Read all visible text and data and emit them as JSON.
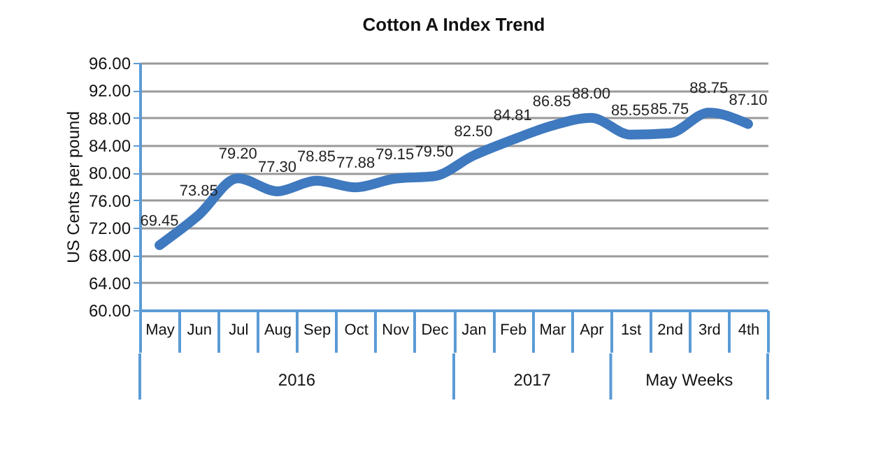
{
  "chart_data": {
    "type": "line",
    "title": "Cotton A Index Trend",
    "ylabel": "US Cents per pound",
    "categories": [
      "May",
      "Jun",
      "Jul",
      "Aug",
      "Sep",
      "Oct",
      "Nov",
      "Dec",
      "Jan",
      "Feb",
      "Mar",
      "Apr",
      "1st",
      "2nd",
      "3rd",
      "4th"
    ],
    "series": [
      {
        "color": "#3f79bf",
        "values": [
          69.45,
          73.85,
          79.2,
          77.3,
          78.85,
          77.88,
          79.15,
          79.5,
          82.5,
          84.81,
          86.85,
          88.0,
          85.55,
          85.75,
          88.75,
          87.1
        ],
        "value_labels": [
          "69.45",
          "73.85",
          "79.20",
          "77.30",
          "78.85",
          "77.88",
          "79.15",
          "79.50",
          "82.50",
          "84.81",
          "86.85",
          "88.00",
          "85.55",
          "85.75",
          "88.75",
          "87.10"
        ]
      }
    ],
    "ylim": [
      60,
      96
    ],
    "yticks": [
      {
        "value": 60,
        "label": "60.00"
      },
      {
        "value": 64,
        "label": "64.00"
      },
      {
        "value": 68,
        "label": "68.00"
      },
      {
        "value": 72,
        "label": "72.00"
      },
      {
        "value": 76,
        "label": "76.00"
      },
      {
        "value": 80,
        "label": "80.00"
      },
      {
        "value": 84,
        "label": "84.00"
      },
      {
        "value": 88,
        "label": "88.00"
      },
      {
        "value": 92,
        "label": "92.00"
      },
      {
        "value": 96,
        "label": "96.00"
      }
    ],
    "grid": "y",
    "marker": "none",
    "line_style": "solid",
    "annotations": [
      "2016",
      "2017",
      "May Weeks"
    ]
  }
}
